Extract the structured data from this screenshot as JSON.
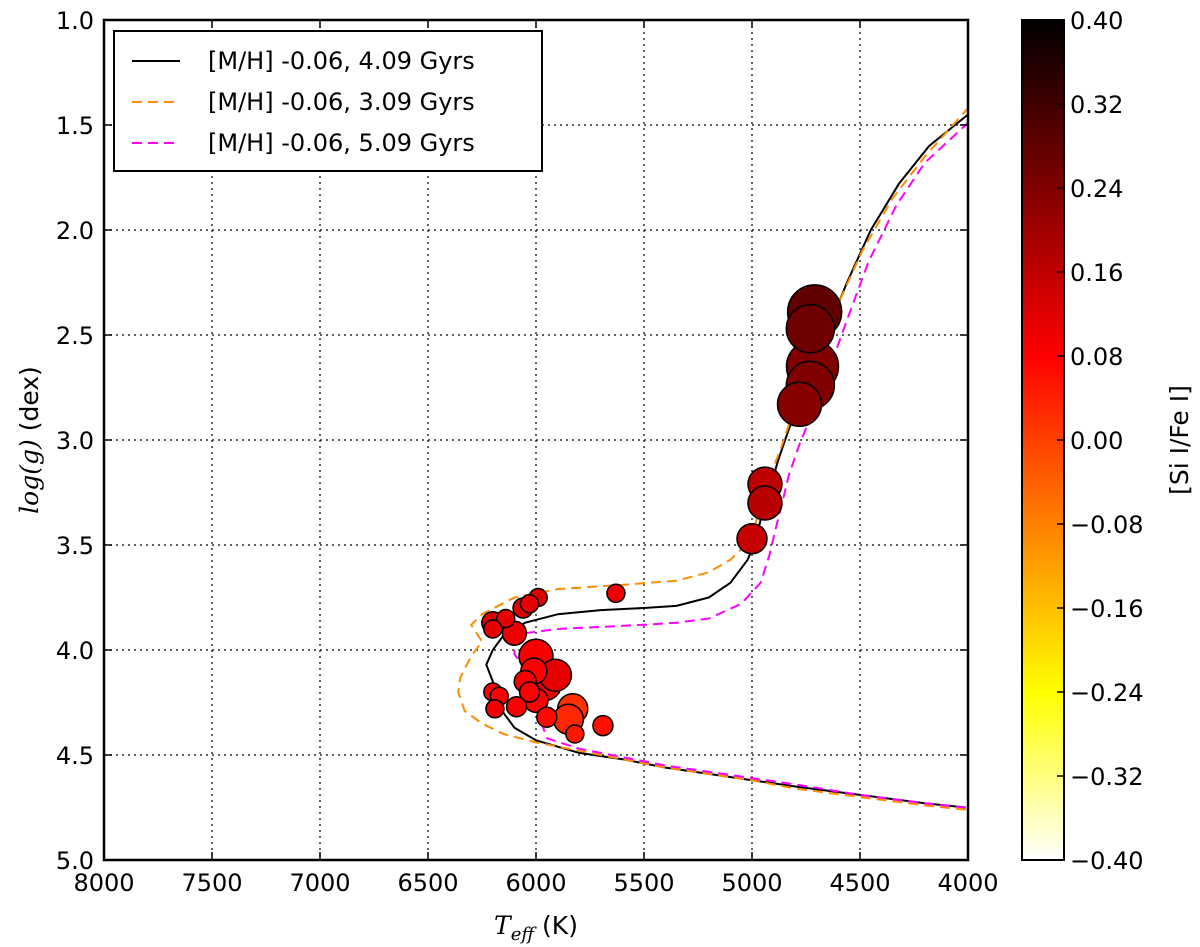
{
  "chart_data": {
    "type": "scatter",
    "title": "",
    "xlabel": {
      "math": "T",
      "sub": "eff",
      "unit": " (K)"
    },
    "ylabel": {
      "math": "log(g)",
      "unit": " (dex)"
    },
    "xlim": [
      8000,
      4000
    ],
    "ylim": [
      1.0,
      5.0
    ],
    "x_inverted": true,
    "y_inverted": true,
    "xticks": [
      "8000",
      "7500",
      "7000",
      "6500",
      "6000",
      "5500",
      "5000",
      "4500",
      "4000"
    ],
    "xtick_values": [
      8000,
      7500,
      7000,
      6500,
      6000,
      5500,
      5000,
      4500,
      4000
    ],
    "yticks": [
      "1.0",
      "1.5",
      "2.0",
      "2.5",
      "3.0",
      "3.5",
      "4.0",
      "4.5",
      "5.0"
    ],
    "ytick_values": [
      1.0,
      1.5,
      2.0,
      2.5,
      3.0,
      3.5,
      4.0,
      4.5,
      5.0
    ],
    "grid": true,
    "legend_position": "top-left",
    "series": [
      {
        "name": "[M/H] -0.06, 4.09 Gyrs",
        "type": "line",
        "color": "#000000",
        "dash": "solid",
        "points": [
          [
            4010,
            4.75
          ],
          [
            4200,
            4.73
          ],
          [
            4500,
            4.69
          ],
          [
            4800,
            4.65
          ],
          [
            5000,
            4.62
          ],
          [
            5200,
            4.59
          ],
          [
            5400,
            4.56
          ],
          [
            5600,
            4.52
          ],
          [
            5800,
            4.49
          ],
          [
            6000,
            4.43
          ],
          [
            6100,
            4.37
          ],
          [
            6150,
            4.3
          ],
          [
            6180,
            4.22
          ],
          [
            6200,
            4.15
          ],
          [
            6230,
            4.07
          ],
          [
            6200,
            4.0
          ],
          [
            6150,
            3.93
          ],
          [
            6050,
            3.87
          ],
          [
            5900,
            3.83
          ],
          [
            5700,
            3.81
          ],
          [
            5500,
            3.8
          ],
          [
            5350,
            3.79
          ],
          [
            5200,
            3.75
          ],
          [
            5100,
            3.68
          ],
          [
            5020,
            3.57
          ],
          [
            4980,
            3.47
          ],
          [
            4960,
            3.38
          ],
          [
            4930,
            3.28
          ],
          [
            4880,
            3.1
          ],
          [
            4830,
            2.95
          ],
          [
            4780,
            2.82
          ],
          [
            4720,
            2.65
          ],
          [
            4640,
            2.45
          ],
          [
            4560,
            2.25
          ],
          [
            4450,
            2.0
          ],
          [
            4320,
            1.78
          ],
          [
            4180,
            1.6
          ],
          [
            4000,
            1.45
          ]
        ]
      },
      {
        "name": "[M/H] -0.06, 3.09 Gyrs",
        "type": "line",
        "color": "#ff8c00",
        "dash": "dashed",
        "points": [
          [
            4010,
            4.76
          ],
          [
            4200,
            4.74
          ],
          [
            4500,
            4.7
          ],
          [
            4800,
            4.66
          ],
          [
            5000,
            4.62
          ],
          [
            5200,
            4.59
          ],
          [
            5400,
            4.56
          ],
          [
            5600,
            4.52
          ],
          [
            5800,
            4.48
          ],
          [
            6000,
            4.44
          ],
          [
            6150,
            4.4
          ],
          [
            6250,
            4.35
          ],
          [
            6330,
            4.29
          ],
          [
            6360,
            4.2
          ],
          [
            6350,
            4.13
          ],
          [
            6300,
            4.03
          ],
          [
            6250,
            3.96
          ],
          [
            6300,
            3.88
          ],
          [
            6250,
            3.83
          ],
          [
            6100,
            3.75
          ],
          [
            5900,
            3.71
          ],
          [
            5600,
            3.69
          ],
          [
            5350,
            3.67
          ],
          [
            5200,
            3.63
          ],
          [
            5100,
            3.57
          ],
          [
            5030,
            3.5
          ],
          [
            4990,
            3.42
          ],
          [
            4960,
            3.31
          ],
          [
            4920,
            3.18
          ],
          [
            4870,
            3.05
          ],
          [
            4820,
            2.9
          ],
          [
            4760,
            2.75
          ],
          [
            4680,
            2.55
          ],
          [
            4600,
            2.35
          ],
          [
            4490,
            2.1
          ],
          [
            4350,
            1.85
          ],
          [
            4200,
            1.65
          ],
          [
            4000,
            1.42
          ]
        ]
      },
      {
        "name": "[M/H] -0.06, 5.09 Gyrs",
        "type": "line",
        "color": "#ff00ff",
        "dash": "dashed",
        "points": [
          [
            4010,
            4.75
          ],
          [
            4200,
            4.73
          ],
          [
            4500,
            4.69
          ],
          [
            4800,
            4.64
          ],
          [
            5000,
            4.61
          ],
          [
            5200,
            4.58
          ],
          [
            5400,
            4.55
          ],
          [
            5600,
            4.51
          ],
          [
            5800,
            4.47
          ],
          [
            5950,
            4.42
          ],
          [
            5980,
            4.33
          ],
          [
            5980,
            4.25
          ],
          [
            6000,
            4.17
          ],
          [
            6050,
            4.09
          ],
          [
            6100,
            4.02
          ],
          [
            6100,
            3.96
          ],
          [
            6050,
            3.92
          ],
          [
            5900,
            3.9
          ],
          [
            5700,
            3.89
          ],
          [
            5500,
            3.88
          ],
          [
            5350,
            3.87
          ],
          [
            5200,
            3.85
          ],
          [
            5050,
            3.78
          ],
          [
            4960,
            3.68
          ],
          [
            4920,
            3.55
          ],
          [
            4890,
            3.42
          ],
          [
            4860,
            3.3
          ],
          [
            4830,
            3.17
          ],
          [
            4780,
            3.02
          ],
          [
            4720,
            2.87
          ],
          [
            4670,
            2.73
          ],
          [
            4620,
            2.6
          ],
          [
            4550,
            2.4
          ],
          [
            4460,
            2.15
          ],
          [
            4330,
            1.88
          ],
          [
            4200,
            1.68
          ],
          [
            4000,
            1.49
          ]
        ]
      }
    ],
    "scatter": {
      "color_label": "[Si I/Fe I]",
      "points": [
        {
          "x": 4710,
          "y": 2.39,
          "c": 0.28,
          "size": 27
        },
        {
          "x": 4730,
          "y": 2.47,
          "c": 0.26,
          "size": 24
        },
        {
          "x": 4720,
          "y": 2.65,
          "c": 0.24,
          "size": 26
        },
        {
          "x": 4730,
          "y": 2.74,
          "c": 0.24,
          "size": 24
        },
        {
          "x": 4780,
          "y": 2.83,
          "c": 0.23,
          "size": 22
        },
        {
          "x": 4940,
          "y": 3.21,
          "c": 0.16,
          "size": 17
        },
        {
          "x": 4940,
          "y": 3.3,
          "c": 0.17,
          "size": 17
        },
        {
          "x": 5000,
          "y": 3.47,
          "c": 0.15,
          "size": 15
        },
        {
          "x": 5630,
          "y": 3.73,
          "c": 0.1,
          "size": 9
        },
        {
          "x": 5990,
          "y": 3.75,
          "c": 0.12,
          "size": 9
        },
        {
          "x": 6030,
          "y": 3.78,
          "c": 0.11,
          "size": 9
        },
        {
          "x": 6060,
          "y": 3.8,
          "c": 0.12,
          "size": 10
        },
        {
          "x": 6140,
          "y": 3.85,
          "c": 0.11,
          "size": 9
        },
        {
          "x": 6200,
          "y": 3.87,
          "c": 0.12,
          "size": 11
        },
        {
          "x": 6100,
          "y": 3.92,
          "c": 0.1,
          "size": 12
        },
        {
          "x": 6200,
          "y": 3.9,
          "c": 0.11,
          "size": 9
        },
        {
          "x": 6000,
          "y": 4.03,
          "c": 0.09,
          "size": 17
        },
        {
          "x": 6010,
          "y": 4.1,
          "c": 0.08,
          "size": 13
        },
        {
          "x": 5910,
          "y": 4.12,
          "c": 0.11,
          "size": 16
        },
        {
          "x": 6050,
          "y": 4.15,
          "c": 0.09,
          "size": 11
        },
        {
          "x": 5960,
          "y": 4.16,
          "c": 0.1,
          "size": 17
        },
        {
          "x": 6030,
          "y": 4.2,
          "c": 0.08,
          "size": 10
        },
        {
          "x": 6200,
          "y": 4.2,
          "c": 0.09,
          "size": 9
        },
        {
          "x": 6170,
          "y": 4.22,
          "c": 0.08,
          "size": 9
        },
        {
          "x": 6000,
          "y": 4.24,
          "c": 0.08,
          "size": 12
        },
        {
          "x": 6090,
          "y": 4.27,
          "c": 0.09,
          "size": 10
        },
        {
          "x": 6190,
          "y": 4.28,
          "c": 0.1,
          "size": 9
        },
        {
          "x": 5830,
          "y": 4.28,
          "c": 0.02,
          "size": 15
        },
        {
          "x": 5850,
          "y": 4.33,
          "c": 0.03,
          "size": 15
        },
        {
          "x": 5690,
          "y": 4.36,
          "c": 0.06,
          "size": 10
        },
        {
          "x": 5820,
          "y": 4.4,
          "c": 0.05,
          "size": 9
        },
        {
          "x": 5950,
          "y": 4.32,
          "c": 0.07,
          "size": 10
        }
      ]
    },
    "colorbar": {
      "label": "[Si I/Fe I]",
      "min": -0.4,
      "max": 0.4,
      "ticks": [
        "0.40",
        "0.32",
        "0.24",
        "0.16",
        "0.08",
        "0.00",
        "−0.08",
        "−0.16",
        "−0.24",
        "−0.32",
        "−0.40"
      ],
      "tick_values": [
        0.4,
        0.32,
        0.24,
        0.16,
        0.08,
        0.0,
        -0.08,
        -0.16,
        -0.24,
        -0.32,
        -0.4
      ],
      "colormap": "hot_r",
      "colors": [
        "#ffffff",
        "#ffff00",
        "#ff8000",
        "#ff0000",
        "#800000",
        "#000000"
      ]
    }
  }
}
